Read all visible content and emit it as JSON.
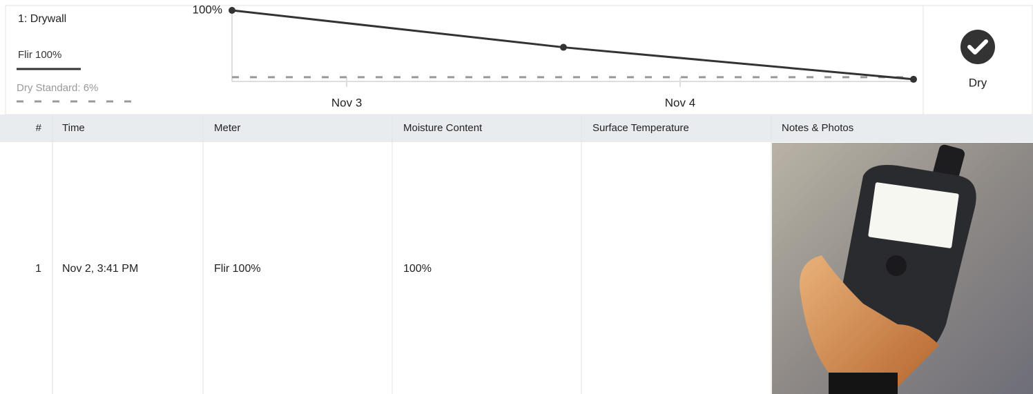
{
  "panel": {
    "title": "1: Drywall",
    "status": "Dry"
  },
  "chart_data": {
    "type": "line",
    "x": [
      2.656,
      3.65,
      4.7
    ],
    "xlim": [
      2.656,
      4.7
    ],
    "xticks": [
      {
        "value": 3,
        "label": "Nov 3"
      },
      {
        "value": 4,
        "label": "Nov 4"
      }
    ],
    "ylim": [
      0,
      100
    ],
    "yticks": [
      {
        "value": 100,
        "label": "100%"
      }
    ],
    "series": [
      {
        "name": "Flir 100%",
        "color": "#333333",
        "values": [
          100,
          48,
          3
        ]
      }
    ],
    "dry_standard": {
      "label": "Dry Standard: 6%",
      "value": 6,
      "color": "#999999"
    }
  },
  "table": {
    "header": [
      "#",
      "Time",
      "Meter",
      "Moisture Content",
      "Surface Temperature",
      "Notes & Photos"
    ],
    "rows": [
      {
        "number": "1",
        "time": "Nov 2, 3:41 PM",
        "meter": "Flir 100%",
        "moisture": "100%"
      }
    ]
  }
}
